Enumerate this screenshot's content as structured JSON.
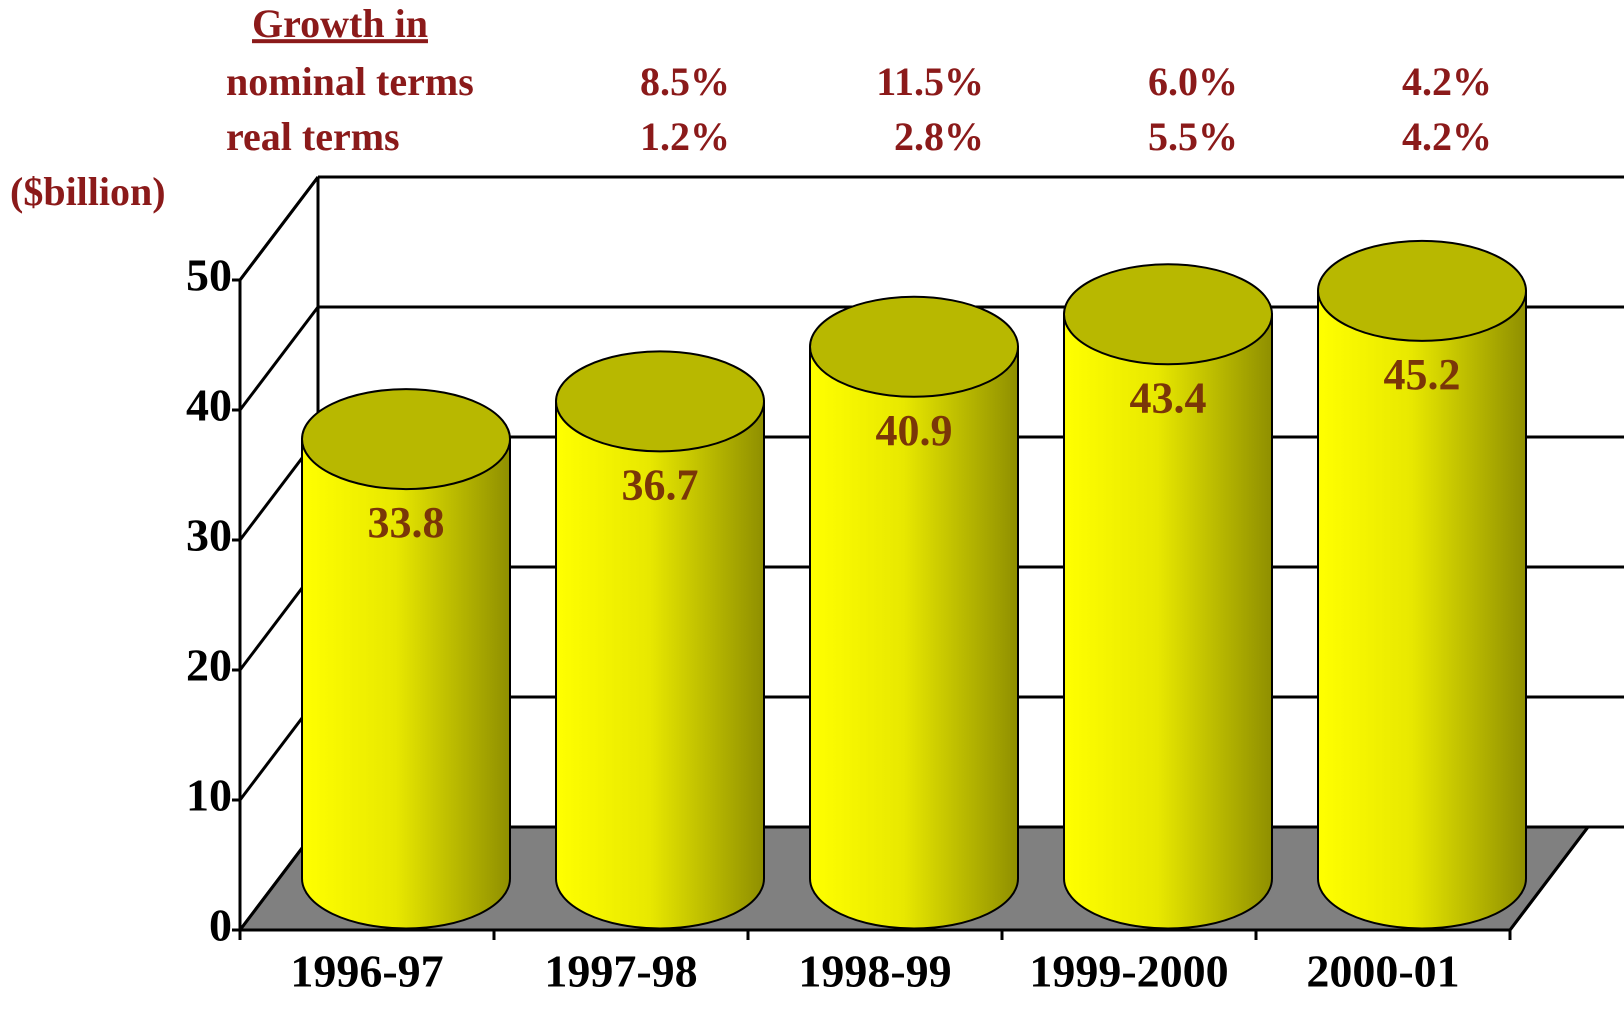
{
  "chart_data": {
    "type": "bar3d",
    "y_label": "($billion)",
    "categories": [
      "1996-97",
      "1997-98",
      "1998-99",
      "1999-2000",
      "2000-01"
    ],
    "values": [
      33.8,
      36.7,
      40.9,
      43.4,
      45.2
    ],
    "color": "#ffff00",
    "ylim": [
      0,
      50
    ],
    "yticks": [
      0,
      10,
      20,
      30,
      40,
      50
    ],
    "grid": true,
    "growth": {
      "title": "Growth in",
      "rows": [
        {
          "label": "nominal terms",
          "values": [
            "8.5%",
            "11.5%",
            "6.0%",
            "4.2%"
          ]
        },
        {
          "label": "real terms",
          "values": [
            "1.2%",
            "2.8%",
            "5.5%",
            "4.2%"
          ]
        }
      ]
    }
  }
}
